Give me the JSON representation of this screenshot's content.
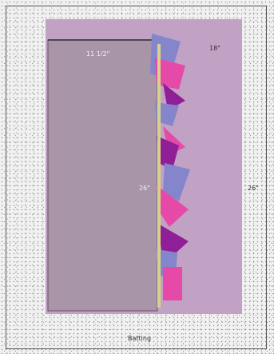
{
  "labels": {
    "width_main": "11 1/2\"",
    "width_full": "18\"",
    "height_inner": "26\"",
    "height_full": "26\"",
    "caption": "Batting"
  },
  "colors": {
    "background_panel": "#c1a2c5",
    "main_panel": "#a896a8",
    "border_line": "#6a4f6a",
    "stripe": "#d7d28a",
    "periwinkle": "#8585cc",
    "pink": "#e64aa8",
    "purple": "#8f1f96",
    "top_line": "#2a2a2a"
  }
}
